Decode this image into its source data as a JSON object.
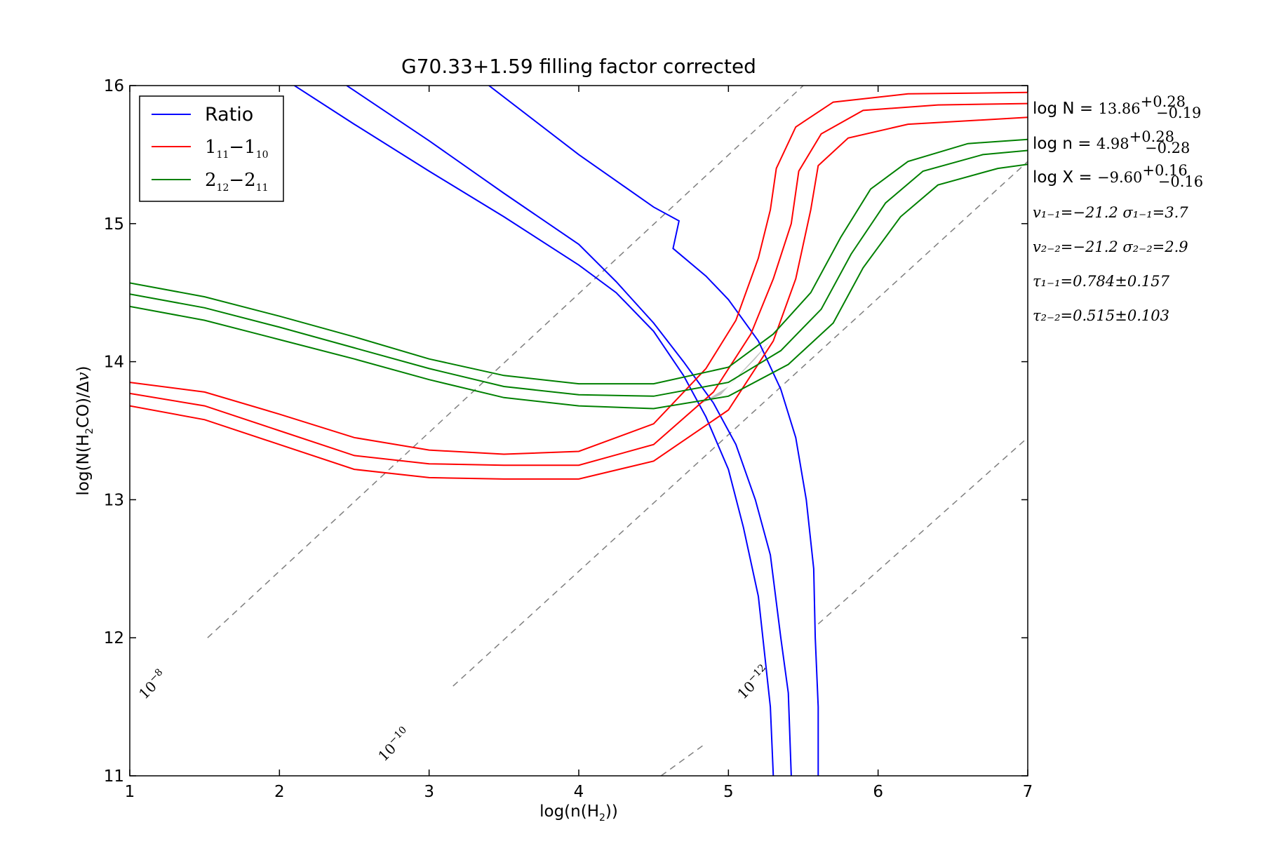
{
  "chart_data": {
    "type": "contour",
    "title": "G70.33+1.59 filling factor corrected",
    "xlabel": "log(n(H2))",
    "ylabel": "log(N(H2CO)/Δv)",
    "xlim": [
      1,
      7
    ],
    "ylim": [
      11,
      16
    ],
    "xticks": [
      "1",
      "2",
      "3",
      "4",
      "5",
      "6",
      "7"
    ],
    "yticks": [
      "11",
      "12",
      "13",
      "14",
      "15",
      "16"
    ],
    "legend": {
      "placement": "top-left",
      "entries": [
        {
          "label": "Ratio",
          "color": "#0000ff"
        },
        {
          "label_main": "1",
          "label_sub1": "11",
          "label_dash": "−",
          "label_main2": "1",
          "label_sub2": "10",
          "color": "#ff0000"
        },
        {
          "label_main": "2",
          "label_sub1": "12",
          "label_dash": "−",
          "label_main2": "2",
          "label_sub2": "11",
          "color": "#008000"
        }
      ]
    },
    "series": [
      {
        "color": "#0000ff",
        "curves": [
          [
            [
              2.1,
              16.0
            ],
            [
              2.5,
              15.72
            ],
            [
              3.0,
              15.38
            ],
            [
              3.5,
              15.05
            ],
            [
              4.0,
              14.7
            ],
            [
              4.25,
              14.5
            ],
            [
              4.5,
              14.22
            ],
            [
              4.7,
              13.9
            ],
            [
              4.85,
              13.6
            ],
            [
              5.0,
              13.22
            ],
            [
              5.1,
              12.8
            ],
            [
              5.2,
              12.3
            ],
            [
              5.25,
              11.8
            ],
            [
              5.28,
              11.5
            ],
            [
              5.3,
              11.0
            ]
          ],
          [
            [
              2.45,
              16.0
            ],
            [
              3.0,
              15.6
            ],
            [
              3.5,
              15.22
            ],
            [
              4.0,
              14.85
            ],
            [
              4.25,
              14.58
            ],
            [
              4.5,
              14.28
            ],
            [
              4.7,
              14.0
            ],
            [
              4.9,
              13.7
            ],
            [
              5.05,
              13.4
            ],
            [
              5.18,
              13.0
            ],
            [
              5.28,
              12.6
            ],
            [
              5.35,
              12.0
            ],
            [
              5.4,
              11.6
            ],
            [
              5.42,
              11.0
            ]
          ],
          [
            [
              3.4,
              16.0
            ],
            [
              4.0,
              15.5
            ],
            [
              4.5,
              15.12
            ],
            [
              4.67,
              15.02
            ],
            [
              4.63,
              14.82
            ],
            [
              4.85,
              14.62
            ],
            [
              5.0,
              14.45
            ],
            [
              5.2,
              14.15
            ],
            [
              5.35,
              13.8
            ],
            [
              5.45,
              13.45
            ],
            [
              5.52,
              13.0
            ],
            [
              5.57,
              12.5
            ],
            [
              5.58,
              12.0
            ],
            [
              5.6,
              11.5
            ],
            [
              5.6,
              11.0
            ]
          ]
        ]
      },
      {
        "color": "#ff0000",
        "curves": [
          [
            [
              1.0,
              13.85
            ],
            [
              1.5,
              13.78
            ],
            [
              2.0,
              13.62
            ],
            [
              2.5,
              13.45
            ],
            [
              3.0,
              13.36
            ],
            [
              3.5,
              13.33
            ],
            [
              4.0,
              13.35
            ],
            [
              4.5,
              13.55
            ],
            [
              4.85,
              13.95
            ],
            [
              5.05,
              14.3
            ],
            [
              5.2,
              14.75
            ],
            [
              5.28,
              15.1
            ],
            [
              5.32,
              15.4
            ],
            [
              5.45,
              15.7
            ],
            [
              5.7,
              15.88
            ],
            [
              6.2,
              15.94
            ],
            [
              7.0,
              15.95
            ]
          ],
          [
            [
              1.0,
              13.77
            ],
            [
              1.5,
              13.68
            ],
            [
              2.0,
              13.5
            ],
            [
              2.5,
              13.32
            ],
            [
              3.0,
              13.26
            ],
            [
              3.5,
              13.25
            ],
            [
              4.0,
              13.25
            ],
            [
              4.5,
              13.4
            ],
            [
              4.9,
              13.78
            ],
            [
              5.15,
              14.2
            ],
            [
              5.3,
              14.6
            ],
            [
              5.42,
              15.0
            ],
            [
              5.47,
              15.38
            ],
            [
              5.62,
              15.65
            ],
            [
              5.9,
              15.82
            ],
            [
              6.4,
              15.86
            ],
            [
              7.0,
              15.87
            ]
          ],
          [
            [
              1.0,
              13.68
            ],
            [
              1.5,
              13.58
            ],
            [
              2.0,
              13.4
            ],
            [
              2.5,
              13.22
            ],
            [
              3.0,
              13.16
            ],
            [
              3.5,
              13.15
            ],
            [
              4.0,
              13.15
            ],
            [
              4.5,
              13.28
            ],
            [
              5.0,
              13.65
            ],
            [
              5.3,
              14.15
            ],
            [
              5.45,
              14.6
            ],
            [
              5.55,
              15.1
            ],
            [
              5.6,
              15.42
            ],
            [
              5.8,
              15.62
            ],
            [
              6.2,
              15.72
            ],
            [
              7.0,
              15.77
            ]
          ]
        ]
      },
      {
        "color": "#008000",
        "curves": [
          [
            [
              1.0,
              14.57
            ],
            [
              1.5,
              14.47
            ],
            [
              2.0,
              14.33
            ],
            [
              2.5,
              14.18
            ],
            [
              3.0,
              14.02
            ],
            [
              3.5,
              13.9
            ],
            [
              4.0,
              13.84
            ],
            [
              4.5,
              13.84
            ],
            [
              5.0,
              13.96
            ],
            [
              5.3,
              14.2
            ],
            [
              5.55,
              14.5
            ],
            [
              5.75,
              14.9
            ],
            [
              5.95,
              15.25
            ],
            [
              6.2,
              15.45
            ],
            [
              6.6,
              15.58
            ],
            [
              7.0,
              15.61
            ]
          ],
          [
            [
              1.0,
              14.49
            ],
            [
              1.5,
              14.39
            ],
            [
              2.0,
              14.25
            ],
            [
              2.5,
              14.1
            ],
            [
              3.0,
              13.95
            ],
            [
              3.5,
              13.82
            ],
            [
              4.0,
              13.76
            ],
            [
              4.5,
              13.75
            ],
            [
              5.0,
              13.85
            ],
            [
              5.35,
              14.08
            ],
            [
              5.62,
              14.38
            ],
            [
              5.82,
              14.78
            ],
            [
              6.05,
              15.15
            ],
            [
              6.3,
              15.38
            ],
            [
              6.7,
              15.5
            ],
            [
              7.0,
              15.53
            ]
          ],
          [
            [
              1.0,
              14.4
            ],
            [
              1.5,
              14.3
            ],
            [
              2.0,
              14.16
            ],
            [
              2.5,
              14.02
            ],
            [
              3.0,
              13.87
            ],
            [
              3.5,
              13.74
            ],
            [
              4.0,
              13.68
            ],
            [
              4.5,
              13.66
            ],
            [
              5.0,
              13.75
            ],
            [
              5.4,
              13.98
            ],
            [
              5.7,
              14.28
            ],
            [
              5.9,
              14.68
            ],
            [
              6.15,
              15.05
            ],
            [
              6.4,
              15.28
            ],
            [
              6.8,
              15.4
            ],
            [
              7.0,
              15.43
            ]
          ]
        ]
      },
      {
        "color": "#7f7f7f",
        "style": "dashed",
        "curves": [
          [
            [
              1.52,
              12.0
            ],
            [
              5.5,
              16.0
            ]
          ],
          [
            [
              3.16,
              11.65
            ],
            [
              7.0,
              15.45
            ]
          ],
          [
            [
              4.55,
              11.0
            ],
            [
              4.83,
              11.22
            ]
          ],
          [
            [
              5.6,
              12.1
            ],
            [
              7.0,
              13.45
            ]
          ]
        ]
      }
    ],
    "shaded_region": {
      "color": "#c0c0c0",
      "points": [
        [
          4.78,
          13.68
        ],
        [
          4.95,
          13.76
        ],
        [
          5.1,
          13.94
        ],
        [
          5.28,
          14.15
        ],
        [
          5.18,
          14.02
        ],
        [
          5.0,
          13.82
        ],
        [
          4.85,
          13.72
        ]
      ]
    },
    "contour_labels": [
      {
        "text": "10",
        "exp": "−8",
        "x": 1.1,
        "y": 11.55
      },
      {
        "text": "10",
        "exp": "−10",
        "x": 2.7,
        "y": 11.1
      },
      {
        "text": "10",
        "exp": "−12",
        "x": 5.1,
        "y": 11.55
      }
    ],
    "annotations": [
      {
        "label": "log N = ",
        "value": "13.86",
        "sup": "+0.28",
        "sub": "−0.19"
      },
      {
        "label": "log n = ",
        "value": "4.98",
        "sup": "+0.28",
        "sub": "−0.28"
      },
      {
        "label": "log X = ",
        "value": "−9.60",
        "sup": "+0.16",
        "sub": "−0.16"
      },
      {
        "text": "v₁₋₁=−21.2  σ₁₋₁=3.7"
      },
      {
        "text": "v₂₋₂=−21.2  σ₂₋₂=2.9"
      },
      {
        "text": "τ₁₋₁=0.784±0.157"
      },
      {
        "text": "τ₂₋₂=0.515±0.103"
      }
    ]
  }
}
